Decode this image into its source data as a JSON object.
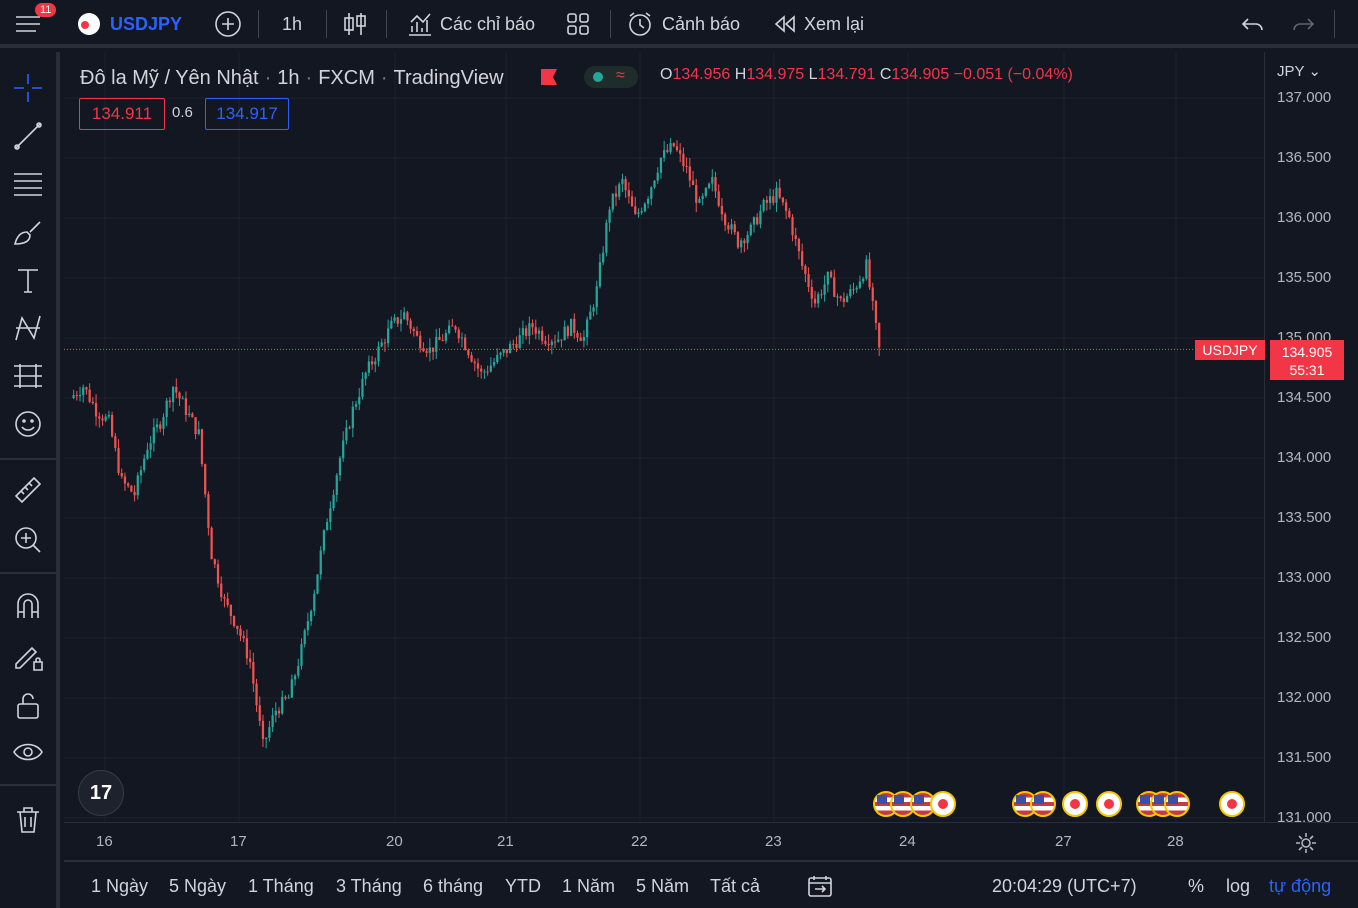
{
  "topbar": {
    "notifications": "11",
    "symbol": "USDJPY",
    "interval": "1h",
    "indicators_label": "Các chỉ báo",
    "alerts_label": "Cảnh báo",
    "replay_label": "Xem lại"
  },
  "legend": {
    "name": "Đô la Mỹ / Yên Nhật",
    "interval": "1h",
    "exchange": "FXCM",
    "source": "TradingView",
    "open_label": "O",
    "open": "134.956",
    "high_label": "H",
    "high": "134.975",
    "low_label": "L",
    "low": "134.791",
    "close_label": "C",
    "close": "134.905",
    "change": "−0.051 (−0.04%)"
  },
  "quote": {
    "bid": "134.911",
    "spread": "0.6",
    "ask": "134.917"
  },
  "price_scale": {
    "currency": "JPY",
    "labels": [
      "137.000",
      "136.500",
      "136.000",
      "135.500",
      "135.000",
      "134.500",
      "134.000",
      "133.500",
      "133.000",
      "132.500",
      "132.000",
      "131.500",
      "131.000"
    ],
    "current_symbol": "USDJPY",
    "current_price": "134.905",
    "countdown": "55:31"
  },
  "time_axis": [
    "16",
    "17",
    "20",
    "21",
    "22",
    "23",
    "24",
    "27",
    "28"
  ],
  "bottombar": {
    "ranges": [
      "1 Ngày",
      "5 Ngày",
      "1 Tháng",
      "3 Tháng",
      "6 tháng",
      "YTD",
      "1 Năm",
      "5 Năm",
      "Tất cả"
    ],
    "clock": "20:04:29 (UTC+7)",
    "percent": "%",
    "log": "log",
    "auto": "tự động"
  },
  "colors": {
    "up": "#26a69a",
    "down": "#ef5350",
    "accent": "#2962ff",
    "bg": "#131722"
  },
  "chart_data": {
    "type": "candlestick",
    "ylim": [
      131.0,
      137.0
    ],
    "close_series": [
      134.5,
      134.6,
      134.4,
      134.3,
      133.8,
      133.7,
      134.1,
      134.3,
      134.6,
      134.4,
      134.2,
      133.2,
      132.8,
      132.6,
      132.3,
      131.6,
      131.9,
      132.0,
      132.4,
      132.9,
      133.5,
      134.0,
      134.4,
      134.7,
      134.9,
      135.1,
      135.2,
      135.0,
      134.9,
      135.0,
      135.1,
      134.9,
      134.7,
      134.8,
      134.9,
      135.0,
      135.1,
      135.0,
      135.0,
      135.1,
      135.0,
      135.4,
      136.1,
      136.3,
      136.0,
      136.2,
      136.5,
      136.6,
      136.4,
      136.1,
      136.3,
      136.0,
      135.8,
      135.9,
      136.1,
      136.2,
      136.0,
      135.6,
      135.3,
      135.5,
      135.3,
      135.4,
      135.6,
      134.9
    ]
  }
}
